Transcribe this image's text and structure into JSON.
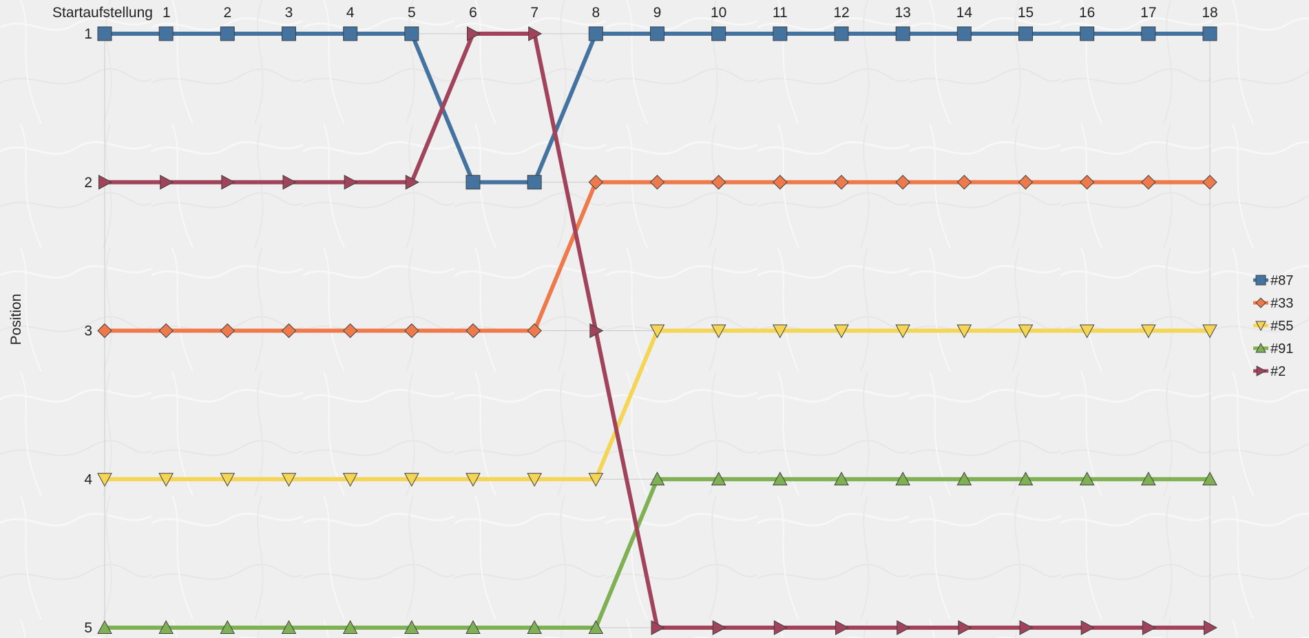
{
  "chart_data": {
    "type": "line",
    "title": "",
    "xlabel": "",
    "ylabel": "Position",
    "x": [
      "Startaufstellung",
      "1",
      "2",
      "3",
      "4",
      "5",
      "6",
      "7",
      "8",
      "9",
      "10",
      "11",
      "12",
      "13",
      "14",
      "15",
      "16",
      "17",
      "18"
    ],
    "y_ticks": [
      "1",
      "2",
      "3",
      "4",
      "5"
    ],
    "ylim": [
      1,
      5
    ],
    "y_inverted": true,
    "grid": true,
    "legend_position": "right",
    "series": [
      {
        "name": "#87",
        "color": "#45739f",
        "marker": "square",
        "values": [
          1,
          1,
          1,
          1,
          1,
          1,
          2,
          2,
          1,
          1,
          1,
          1,
          1,
          1,
          1,
          1,
          1,
          1,
          1
        ]
      },
      {
        "name": "#33",
        "color": "#ee7a4c",
        "marker": "diamond",
        "values": [
          3,
          3,
          3,
          3,
          3,
          3,
          3,
          3,
          2,
          2,
          2,
          2,
          2,
          2,
          2,
          2,
          2,
          2,
          2
        ]
      },
      {
        "name": "#55",
        "color": "#f5d556",
        "marker": "triangle-down",
        "values": [
          4,
          4,
          4,
          4,
          4,
          4,
          4,
          4,
          4,
          3,
          3,
          3,
          3,
          3,
          3,
          3,
          3,
          3,
          3
        ]
      },
      {
        "name": "#91",
        "color": "#7fb053",
        "marker": "triangle-up",
        "values": [
          5,
          5,
          5,
          5,
          5,
          5,
          5,
          5,
          5,
          4,
          4,
          4,
          4,
          4,
          4,
          4,
          4,
          4,
          4
        ]
      },
      {
        "name": "#2",
        "color": "#a0435b",
        "marker": "triangle-right",
        "values": [
          2,
          2,
          2,
          2,
          2,
          2,
          1,
          1,
          3,
          5,
          5,
          5,
          5,
          5,
          5,
          5,
          5,
          5,
          5
        ]
      }
    ]
  }
}
